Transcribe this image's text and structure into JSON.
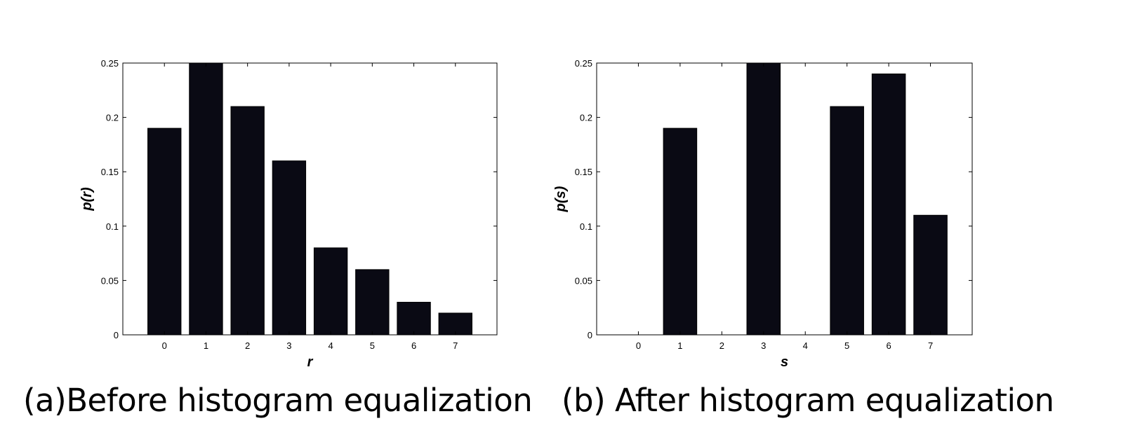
{
  "chart_data": [
    {
      "type": "bar",
      "caption": "(a)Before histogram equalization",
      "xlabel": "r",
      "ylabel": "p(r)",
      "categories": [
        "0",
        "1",
        "2",
        "3",
        "4",
        "5",
        "6",
        "7"
      ],
      "values": [
        0.19,
        0.25,
        0.21,
        0.16,
        0.08,
        0.06,
        0.03,
        0.02
      ],
      "ylim": [
        0,
        0.25
      ],
      "yticks": [
        "0",
        "0.05",
        "0.1",
        "0.15",
        "0.2",
        "0.25"
      ],
      "xlim": [
        -1,
        8
      ],
      "bar_color": "#0a0a14",
      "grid": false
    },
    {
      "type": "bar",
      "caption": "(b) After histogram equalization",
      "xlabel": "s",
      "ylabel": "p(s)",
      "categories": [
        "0",
        "1",
        "2",
        "3",
        "4",
        "5",
        "6",
        "7"
      ],
      "values": [
        0,
        0.19,
        0,
        0.25,
        0,
        0.21,
        0.24,
        0.11
      ],
      "ylim": [
        0,
        0.25
      ],
      "yticks": [
        "0",
        "0.05",
        "0.1",
        "0.15",
        "0.2",
        "0.25"
      ],
      "xlim": [
        -1,
        8
      ],
      "bar_color": "#0a0a14",
      "grid": false
    }
  ]
}
